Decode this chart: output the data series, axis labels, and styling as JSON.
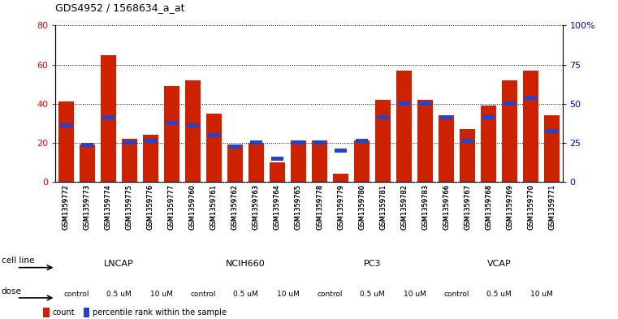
{
  "title": "GDS4952 / 1568634_a_at",
  "samples": [
    "GSM1359772",
    "GSM1359773",
    "GSM1359774",
    "GSM1359775",
    "GSM1359776",
    "GSM1359777",
    "GSM1359760",
    "GSM1359761",
    "GSM1359762",
    "GSM1359763",
    "GSM1359764",
    "GSM1359765",
    "GSM1359778",
    "GSM1359779",
    "GSM1359780",
    "GSM1359781",
    "GSM1359782",
    "GSM1359783",
    "GSM1359766",
    "GSM1359767",
    "GSM1359768",
    "GSM1359769",
    "GSM1359770",
    "GSM1359771"
  ],
  "red_values": [
    41,
    19,
    65,
    22,
    24,
    49,
    52,
    35,
    19,
    20,
    10,
    21,
    21,
    4,
    21,
    42,
    57,
    42,
    34,
    27,
    39,
    52,
    57,
    34
  ],
  "blue_values": [
    29,
    19,
    33,
    20,
    21,
    30,
    29,
    24,
    18,
    20,
    12,
    20,
    20,
    16,
    21,
    33,
    40,
    40,
    33,
    21,
    33,
    40,
    43,
    26
  ],
  "cell_lines": [
    "LNCAP",
    "NCIH660",
    "PC3",
    "VCAP"
  ],
  "cell_line_spans": [
    [
      0,
      6
    ],
    [
      6,
      12
    ],
    [
      12,
      18
    ],
    [
      18,
      24
    ]
  ],
  "cell_line_colors": [
    "#AADDAA",
    "#AADDAA",
    "#88CC88",
    "#55BB55"
  ],
  "dose_groups": [
    [
      "control",
      0,
      2
    ],
    [
      "0.5 uM",
      2,
      4
    ],
    [
      "10 uM",
      4,
      6
    ],
    [
      "control",
      6,
      8
    ],
    [
      "0.5 uM",
      8,
      10
    ],
    [
      "10 uM",
      10,
      12
    ],
    [
      "control",
      12,
      14
    ],
    [
      "0.5 uM",
      14,
      16
    ],
    [
      "10 uM",
      16,
      18
    ],
    [
      "control",
      18,
      20
    ],
    [
      "0.5 uM",
      20,
      22
    ],
    [
      "10 uM",
      22,
      24
    ]
  ],
  "dose_colors": {
    "control": "#FFFFFF",
    "0.5 uM": "#EE88EE",
    "10 uM": "#CC44CC"
  },
  "ylim_left": [
    0,
    80
  ],
  "ylim_right": [
    0,
    100
  ],
  "yticks_left": [
    0,
    20,
    40,
    60,
    80
  ],
  "yticks_right": [
    0,
    25,
    50,
    75,
    100
  ],
  "ytick_right_labels": [
    "0",
    "25",
    "50",
    "75",
    "100%"
  ],
  "red_color": "#CC2200",
  "blue_color": "#2244CC",
  "bar_width": 0.7
}
